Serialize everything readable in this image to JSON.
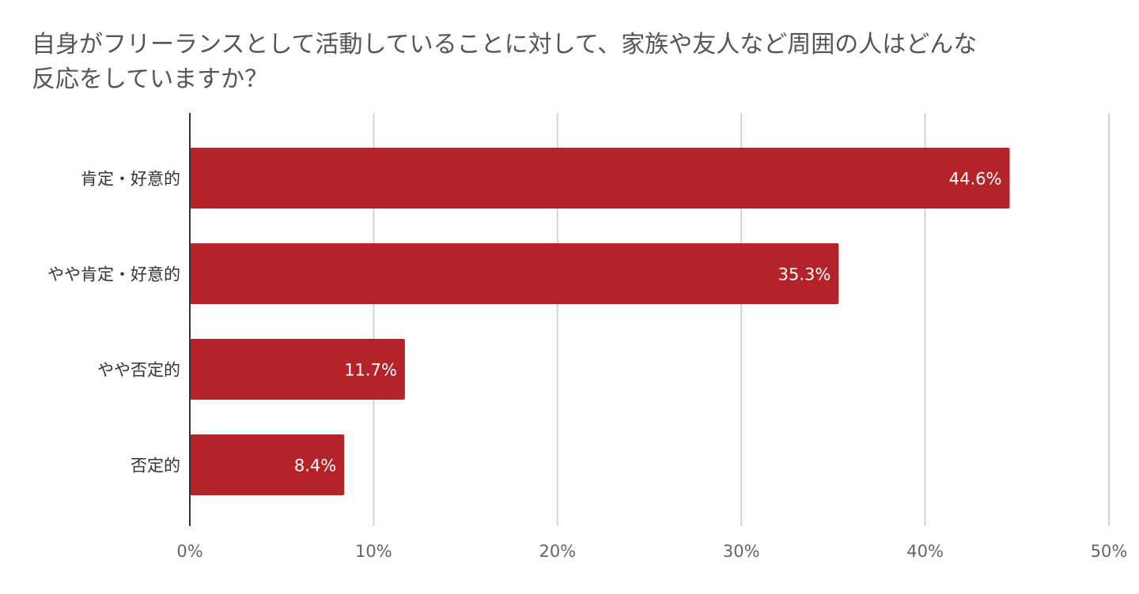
{
  "chart_data": {
    "type": "bar",
    "orientation": "horizontal",
    "title": "自身がフリーランスとして活動していることに対して、家族や友人など周囲の人はどんな反応をしていますか？",
    "title_lines": [
      "自身がフリーランスとして活動していることに対して、家族や友人など周囲の人はどんな",
      "反応をしていますか？"
    ],
    "categories": [
      "肯定・好意的",
      "やや肯定・好意的",
      "やや否定的",
      "否定的"
    ],
    "values": [
      44.6,
      35.3,
      11.7,
      8.4
    ],
    "data_labels": [
      "44.6%",
      "35.3%",
      "11.7%",
      "8.4%"
    ],
    "xlim": [
      0,
      50
    ],
    "xticks": [
      0,
      10,
      20,
      30,
      40,
      50
    ],
    "xtick_labels": [
      "0%",
      "10%",
      "20%",
      "30%",
      "40%",
      "50%"
    ],
    "grid": true,
    "legend": "none",
    "bar_color": "#b5232a",
    "gridline_color": "#d3d3d3",
    "axis_color": "#333333"
  }
}
